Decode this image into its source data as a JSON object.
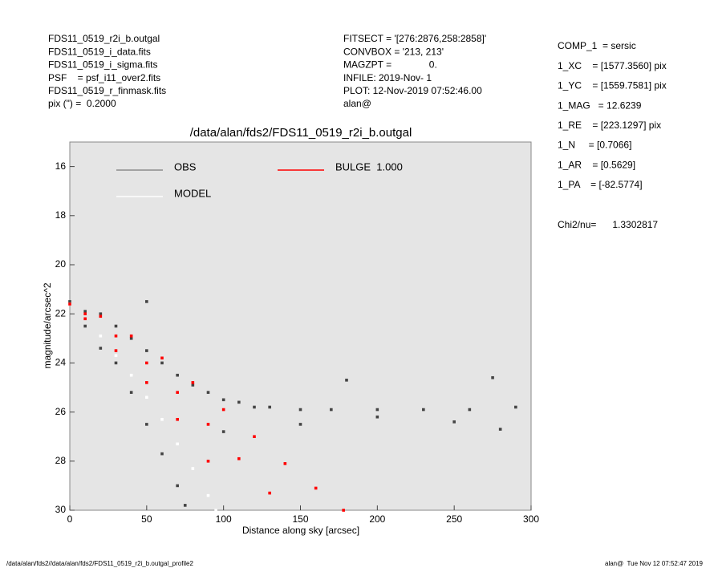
{
  "header": {
    "files": [
      "FDS11_0519_r2i_b.outgal",
      "FDS11_0519_i_data.fits",
      "FDS11_0519_i_sigma.fits",
      "PSF    = psf_i11_over2.fits",
      "FDS11_0519_r_finmask.fits",
      "pix (\") =  0.2000"
    ],
    "settings": [
      "FITSECT = '[276:2876,258:2858]'",
      "CONVBOX = '213, 213'",
      "MAGZPT =              0.",
      "INFILE: 2019-Nov- 1",
      "PLOT: 12-Nov-2019 07:52:46.00",
      "alan@"
    ]
  },
  "parameters": [
    "COMP_1  = sersic",
    "1_XC    = [1577.3560] pix",
    "1_YC    = [1559.7581] pix",
    "1_MAG   = 12.6239",
    "1_RE    = [223.1297] pix",
    "1_N     = [0.7066]",
    "1_AR    = [0.5629]",
    "1_PA    = [-82.5774]"
  ],
  "chi2": "Chi2/nu=      1.3302817",
  "footer": {
    "left": "/data/alan/fds2//data/alan/fds2/FDS11_0519_r2i_b.outgal_profile2",
    "right": "alan@  Tue Nov 12 07:52:47 2019"
  },
  "chart_data": {
    "type": "scatter",
    "title": "/data/alan/fds2/FDS11_0519_r2i_b.outgal",
    "xlabel": "Distance along sky [arcsec]",
    "ylabel": "magnitude/arcsec^2",
    "xlim": [
      0,
      300
    ],
    "xticks": [
      0,
      50,
      100,
      150,
      200,
      250,
      300
    ],
    "ylim": [
      30,
      15
    ],
    "yticks": [
      16,
      18,
      20,
      22,
      24,
      26,
      28,
      30
    ],
    "background": "#e5e5e5",
    "series": [
      {
        "name": "OBS",
        "color": "#8c8c8c",
        "point_color": "#444444",
        "x": [
          0,
          10,
          20,
          30,
          40,
          50,
          60,
          70,
          80,
          90,
          100,
          110,
          120,
          130,
          150,
          170,
          200,
          230,
          260,
          290,
          10,
          20,
          30,
          40,
          50,
          60,
          70,
          75,
          50,
          100,
          150,
          200,
          250,
          280,
          275,
          180
        ],
        "y": [
          21.5,
          21.9,
          22.0,
          22.5,
          23.0,
          23.5,
          24.0,
          24.5,
          24.9,
          25.2,
          25.5,
          25.6,
          25.8,
          25.8,
          25.9,
          25.9,
          25.9,
          25.9,
          25.9,
          25.8,
          22.5,
          23.4,
          24.0,
          25.2,
          26.5,
          27.7,
          29.0,
          29.8,
          21.5,
          26.8,
          26.5,
          26.2,
          26.4,
          26.7,
          24.6,
          24.7
        ]
      },
      {
        "name": "MODEL",
        "color": "#ffffff",
        "point_color": "#ffffff",
        "x": [
          0,
          10,
          20,
          30,
          40,
          50,
          60,
          70,
          80,
          90,
          95
        ],
        "y": [
          21.6,
          22.2,
          22.9,
          23.7,
          24.5,
          25.4,
          26.3,
          27.3,
          28.3,
          29.4,
          30
        ]
      },
      {
        "name": "BULGE  1.000",
        "color": "#ff0000",
        "point_color": "#ff0000",
        "x": [
          0,
          20,
          40,
          60,
          80,
          100,
          120,
          140,
          160,
          178,
          10,
          30,
          50,
          70,
          90,
          110,
          130,
          10,
          30,
          50,
          70,
          90
        ],
        "y": [
          21.6,
          22.1,
          22.9,
          23.8,
          24.8,
          25.9,
          27.0,
          28.1,
          29.1,
          30,
          22.0,
          22.9,
          24.0,
          25.2,
          26.5,
          27.9,
          29.3,
          22.2,
          23.5,
          24.8,
          26.3,
          28.0
        ]
      }
    ]
  }
}
